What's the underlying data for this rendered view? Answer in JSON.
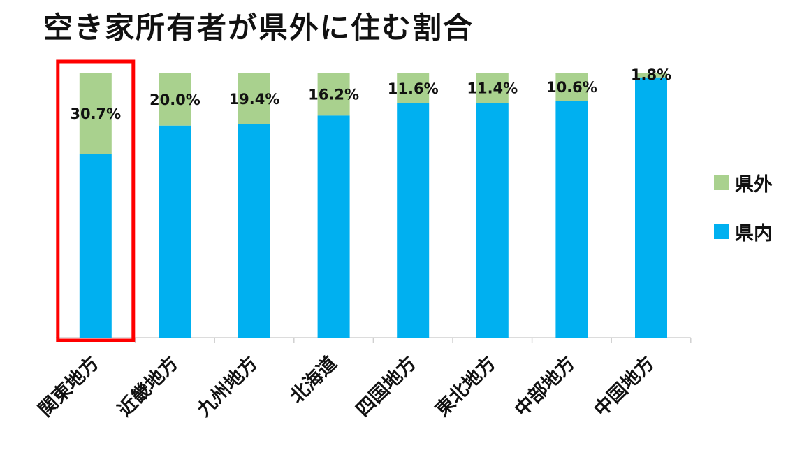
{
  "chart_data": {
    "type": "bar",
    "stacked": true,
    "percent_stacked": true,
    "title": "空き家所有者が県外に住む割合",
    "categories": [
      "関東地方",
      "近畿地方",
      "九州地方",
      "北海道",
      "四国地方",
      "東北地方",
      "中部地方",
      "中国地方"
    ],
    "series": [
      {
        "name": "県内",
        "color": "#00B0F0",
        "values": [
          69.3,
          80.0,
          80.6,
          83.8,
          88.4,
          88.6,
          89.4,
          98.2
        ]
      },
      {
        "name": "県外",
        "color": "#A9D18E",
        "values": [
          30.7,
          20.0,
          19.4,
          16.2,
          11.6,
          11.4,
          10.6,
          1.8
        ]
      }
    ],
    "data_labels": [
      "30.7%",
      "20.0%",
      "19.4%",
      "16.2%",
      "11.6%",
      "11.4%",
      "10.6%",
      "1.8%"
    ],
    "ylim": [
      0,
      100
    ],
    "legend_position": "right",
    "highlight_category": "関東地方",
    "highlight_color": "#FF0000"
  }
}
